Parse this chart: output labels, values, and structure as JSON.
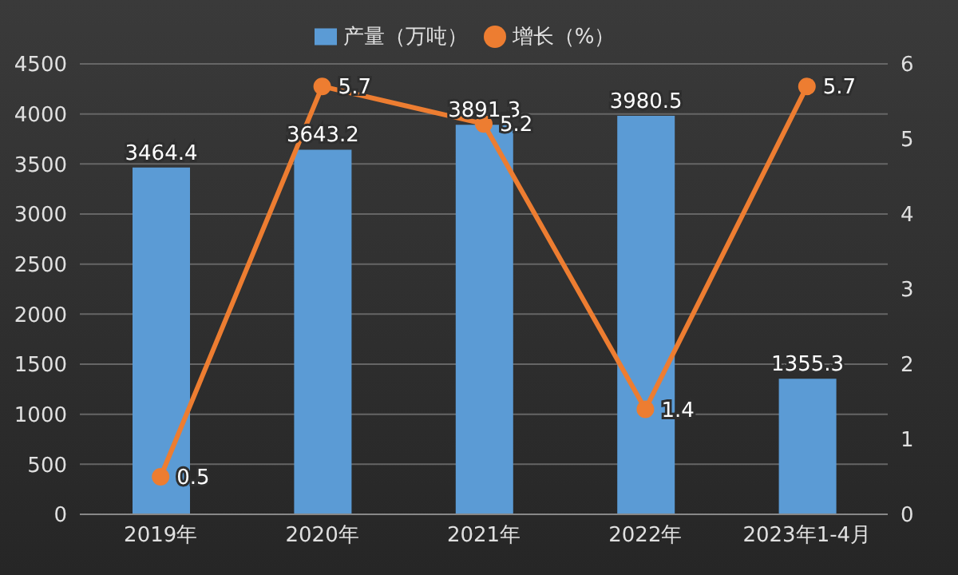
{
  "chart_data": {
    "type": "bar",
    "categories": [
      "2019年",
      "2020年",
      "2021年",
      "2022年",
      "2023年1-4月"
    ],
    "series": [
      {
        "name": "产量（万吨）",
        "color": "#5b9bd5",
        "values": [
          3464.4,
          3643.2,
          3891.3,
          3980.5,
          1355.3
        ]
      },
      {
        "name": "增长（%）",
        "type": "line",
        "axis": "y2",
        "color": "#ed7d31",
        "values": [
          0.5,
          5.7,
          5.2,
          1.4,
          5.7
        ]
      }
    ],
    "ylim": [
      0,
      4500
    ],
    "yticks": [
      0,
      500,
      1000,
      1500,
      2000,
      2500,
      3000,
      3500,
      4000,
      4500
    ],
    "y2lim": [
      0,
      6
    ],
    "y2ticks": [
      0,
      1,
      2,
      3,
      4,
      5,
      6
    ],
    "grid": "y",
    "legend": "top",
    "marker": "circle",
    "line_style": "solid",
    "data_labels": true
  }
}
